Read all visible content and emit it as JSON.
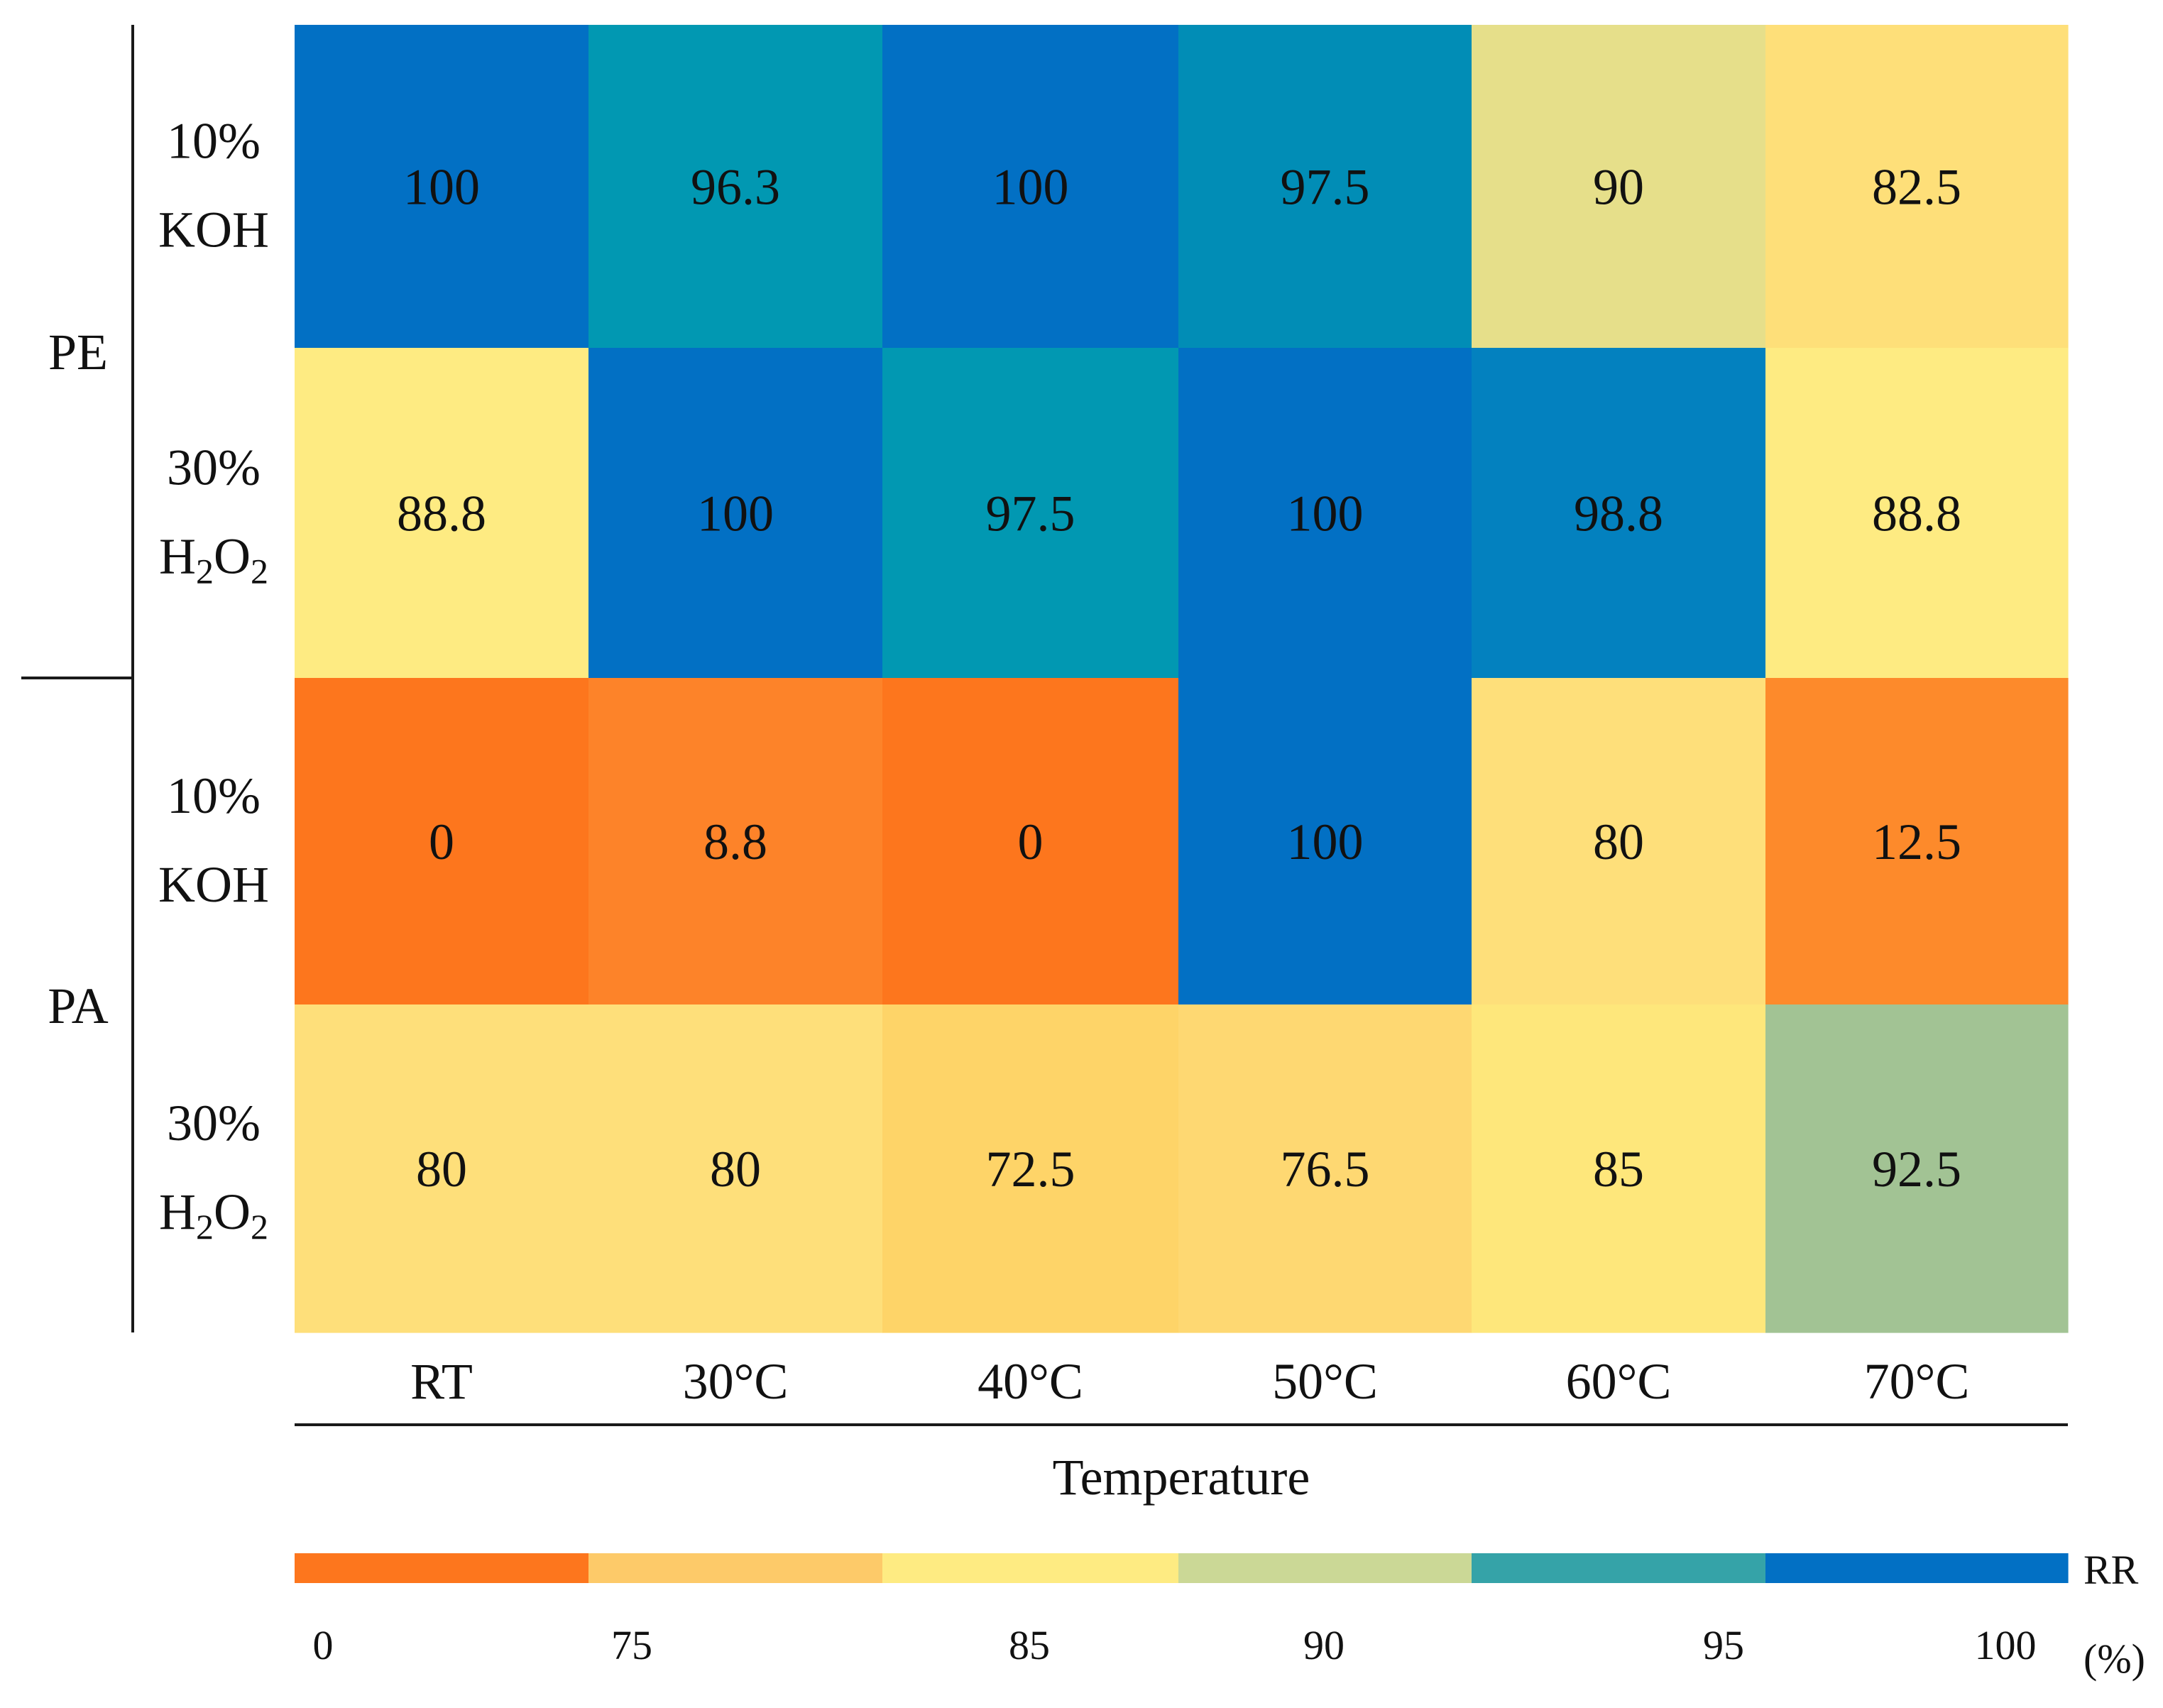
{
  "chart_data": {
    "type": "heatmap",
    "title": "",
    "xlabel": "Temperature",
    "columns": [
      "RT",
      "30°C",
      "40°C",
      "50°C",
      "60°C",
      "70°C"
    ],
    "groups": [
      {
        "name": "PE",
        "rows": [
          {
            "line1": "10%",
            "line2": "KOH",
            "values": [
              100,
              96.3,
              100,
              97.5,
              90,
              82.5
            ]
          },
          {
            "line1": "30%",
            "line2": "H2O2",
            "values": [
              88.8,
              100,
              97.5,
              100,
              98.8,
              88.8
            ]
          }
        ]
      },
      {
        "name": "PA",
        "rows": [
          {
            "line1": "10%",
            "line2": "KOH",
            "values": [
              0,
              8.8,
              0,
              100,
              80,
              12.5
            ]
          },
          {
            "line1": "30%",
            "line2": "H2O2",
            "values": [
              80,
              80,
              72.5,
              76.5,
              85,
              92.5
            ]
          }
        ]
      }
    ],
    "cell_labels": [
      [
        "100",
        "96.3",
        "100",
        "97.5",
        "90",
        "82.5"
      ],
      [
        "88.8",
        "100",
        "97.5",
        "100",
        "98.8",
        "88.8"
      ],
      [
        "0",
        "8.8",
        "0",
        "100",
        "80",
        "12.5"
      ],
      [
        "80",
        "80",
        "72.5",
        "76.5",
        "85",
        "92.5"
      ]
    ],
    "cell_colors": [
      [
        "#0270c4",
        "#0198b2",
        "#0270c4",
        "#018db6",
        "#e6df8a",
        "#fedf79"
      ],
      [
        "#feeb82",
        "#0270c4",
        "#0198b2",
        "#0270c4",
        "#0381bf",
        "#feeb82"
      ],
      [
        "#fd761d",
        "#fd8329",
        "#fd761d",
        "#0270c4",
        "#fedf7a",
        "#fd8a2b"
      ],
      [
        "#fedf7a",
        "#fedf7a",
        "#fed468",
        "#fed872",
        "#fee77b",
        "#a2c394"
      ]
    ],
    "colorbar": {
      "label": "RR",
      "unit": "(%)",
      "ticks": [
        "0",
        "75",
        "85",
        "90",
        "95",
        "100"
      ],
      "segments": [
        "#fd761d",
        "#fdca69",
        "#feeb82",
        "#cbd896",
        "#35a3a8",
        "#0270c4"
      ]
    }
  }
}
